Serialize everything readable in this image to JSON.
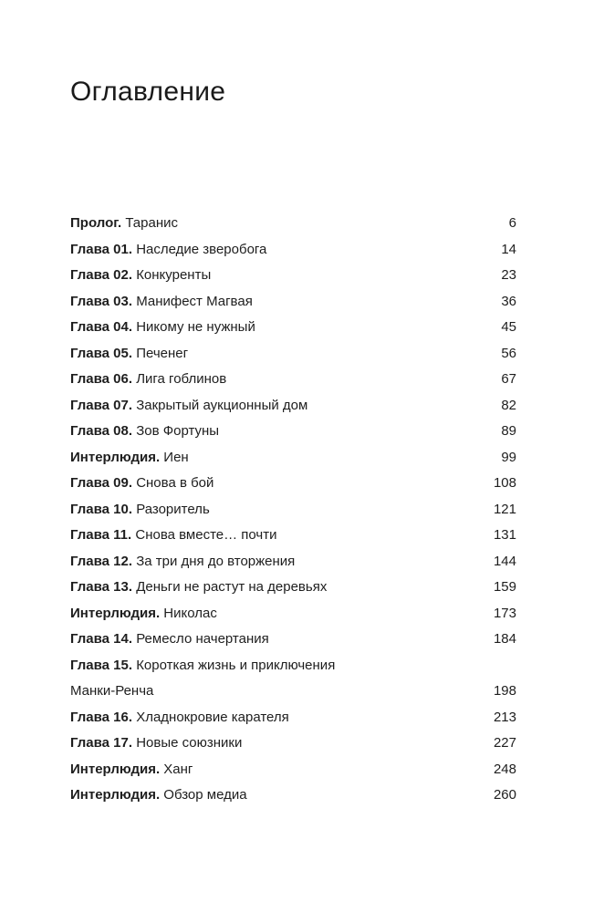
{
  "title": "Оглавление",
  "entries": [
    {
      "label": "Пролог.",
      "title": "Таранис",
      "page": "6"
    },
    {
      "label": "Глава 01.",
      "title": "Наследие зверобога",
      "page": "14"
    },
    {
      "label": "Глава 02.",
      "title": "Конкуренты",
      "page": "23"
    },
    {
      "label": "Глава 03.",
      "title": "Манифест Магвая",
      "page": "36"
    },
    {
      "label": "Глава 04.",
      "title": "Никому не нужный",
      "page": "45"
    },
    {
      "label": "Глава 05.",
      "title": "Печенег",
      "page": "56"
    },
    {
      "label": "Глава 06.",
      "title": "Лига гоблинов",
      "page": "67"
    },
    {
      "label": "Глава 07.",
      "title": "Закрытый аукционный дом",
      "page": "82"
    },
    {
      "label": "Глава 08.",
      "title": "Зов Фортуны",
      "page": "89"
    },
    {
      "label": "Интерлюдия.",
      "title": "Иен",
      "page": "99"
    },
    {
      "label": "Глава 09.",
      "title": "Снова в бой",
      "page": "108"
    },
    {
      "label": "Глава 10.",
      "title": "Разоритель",
      "page": "121"
    },
    {
      "label": "Глава 11.",
      "title": "Снова вместе… почти",
      "page": "131"
    },
    {
      "label": "Глава 12.",
      "title": "За три дня до вторжения",
      "page": "144"
    },
    {
      "label": "Глава 13.",
      "title": "Деньги не растут на деревьях",
      "page": "159"
    },
    {
      "label": "Интерлюдия.",
      "title": "Николас",
      "page": "173"
    },
    {
      "label": "Глава 14.",
      "title": "Ремесло начертания",
      "page": "184"
    },
    {
      "label": "Глава 15.",
      "title": "Короткая жизнь и приключения",
      "title_cont": "Манки-Ренча",
      "page": "198"
    },
    {
      "label": "Глава 16.",
      "title": "Хладнокровие карателя",
      "page": "213"
    },
    {
      "label": "Глава 17.",
      "title": "Новые союзники",
      "page": "227"
    },
    {
      "label": "Интерлюдия.",
      "title": "Ханг",
      "page": "248"
    },
    {
      "label": "Интерлюдия.",
      "title": "Обзор медиа",
      "page": "260"
    }
  ]
}
